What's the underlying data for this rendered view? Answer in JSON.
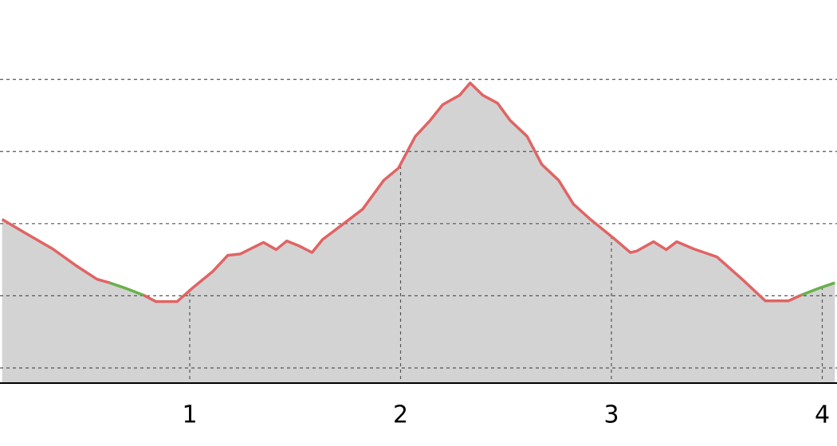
{
  "chart_data": {
    "type": "area",
    "x": [
      0.11,
      0.22,
      0.35,
      0.46,
      0.56,
      0.62,
      0.7,
      0.78,
      0.84,
      0.94,
      1.01,
      1.11,
      1.18,
      1.24,
      1.35,
      1.41,
      1.46,
      1.52,
      1.58,
      1.63,
      1.73,
      1.82,
      1.92,
      1.99,
      2.07,
      2.14,
      2.2,
      2.28,
      2.33,
      2.39,
      2.46,
      2.52,
      2.6,
      2.67,
      2.75,
      2.82,
      2.9,
      3.01,
      3.09,
      3.12,
      3.2,
      3.26,
      3.31,
      3.39,
      3.5,
      3.62,
      3.73,
      3.84,
      3.9,
      3.98,
      4.06
    ],
    "series": [
      {
        "color": "#e06464",
        "values": [
          306,
          287,
          265,
          242,
          223,
          218,
          null,
          201,
          192,
          192,
          210,
          234,
          256,
          258,
          274,
          264,
          276,
          269,
          260,
          278,
          300,
          320,
          360,
          377,
          421,
          443,
          465,
          478,
          495,
          478,
          467,
          443,
          421,
          382,
          360,
          327,
          306,
          280,
          260,
          262,
          275,
          264,
          275,
          265,
          254,
          223,
          193,
          193,
          201,
          null,
          null
        ]
      },
      {
        "color": "#6ab04c",
        "values": [
          null,
          null,
          null,
          null,
          null,
          218,
          210,
          201,
          null,
          null,
          null,
          null,
          null,
          null,
          null,
          null,
          null,
          null,
          null,
          null,
          null,
          null,
          null,
          null,
          null,
          null,
          null,
          null,
          null,
          null,
          null,
          null,
          null,
          null,
          null,
          null,
          null,
          null,
          null,
          null,
          null,
          null,
          null,
          null,
          null,
          null,
          null,
          null,
          201,
          210,
          218
        ]
      }
    ],
    "fill_color": "#d3d3d3",
    "xlim": [
      0.1,
      4.07
    ],
    "xticks": [
      1,
      2,
      3,
      4
    ],
    "ylim": [
      79,
      610
    ],
    "yticks": [
      100,
      200,
      300,
      400,
      500
    ],
    "grid": true
  }
}
